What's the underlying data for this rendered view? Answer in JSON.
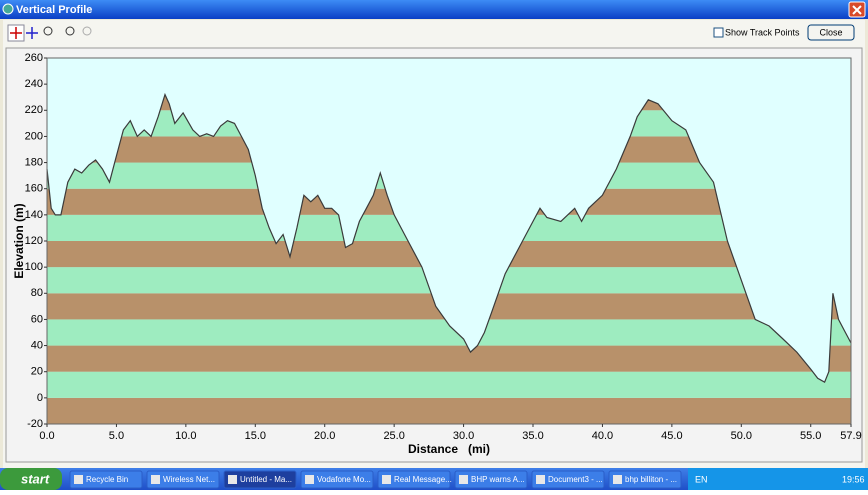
{
  "window": {
    "title": "Vertical Profile",
    "checkbox": "Show Track Points",
    "button": "Close"
  },
  "chart_data": {
    "type": "area",
    "xlabel": "Distance   (mi)",
    "ylabel": "Elevation (m)",
    "x": [
      0,
      0.3,
      0.6,
      1.0,
      1.5,
      2.0,
      2.5,
      3.0,
      3.5,
      4.0,
      4.5,
      5.0,
      5.5,
      6.0,
      6.5,
      7.0,
      7.5,
      8.0,
      8.5,
      8.8,
      9.2,
      9.8,
      10.5,
      11.0,
      11.5,
      12.0,
      12.5,
      13.0,
      13.5,
      14.0,
      14.5,
      15.0,
      15.5,
      16.0,
      16.5,
      17.0,
      17.5,
      18.0,
      18.5,
      19.0,
      19.5,
      20.0,
      20.5,
      21.0,
      21.5,
      22.0,
      22.5,
      23.0,
      23.5,
      24.0,
      24.5,
      25.0,
      26.0,
      27.0,
      28.0,
      29.0,
      30.0,
      30.5,
      31.0,
      31.5,
      32.0,
      32.5,
      33.0,
      34.0,
      35.0,
      35.5,
      36.0,
      37.0,
      38.0,
      38.5,
      39.0,
      40.0,
      41.0,
      42.0,
      42.5,
      43.3,
      44.0,
      45.0,
      46.0,
      47.0,
      48.0,
      49.0,
      50.0,
      51.0,
      52.0,
      53.0,
      54.0,
      55.0,
      55.5,
      56.0,
      56.3,
      56.6,
      57.0,
      57.5,
      57.9
    ],
    "values": [
      175,
      145,
      140,
      140,
      165,
      175,
      172,
      178,
      182,
      175,
      165,
      185,
      205,
      212,
      200,
      205,
      200,
      215,
      232,
      225,
      210,
      218,
      205,
      200,
      202,
      200,
      208,
      212,
      210,
      200,
      190,
      170,
      145,
      130,
      118,
      125,
      108,
      130,
      155,
      150,
      155,
      145,
      145,
      140,
      115,
      118,
      135,
      145,
      155,
      172,
      155,
      140,
      120,
      100,
      70,
      55,
      45,
      35,
      40,
      50,
      65,
      80,
      95,
      115,
      135,
      145,
      138,
      135,
      145,
      135,
      145,
      155,
      175,
      200,
      215,
      228,
      225,
      212,
      205,
      180,
      165,
      120,
      90,
      60,
      55,
      45,
      35,
      22,
      15,
      12,
      20,
      80,
      60,
      50,
      42
    ],
    "color": "#3a3a3a",
    "band_colors": [
      "#b8916a",
      "#9eecc0"
    ],
    "background": "#e0ffff",
    "xlim": [
      0,
      57.9
    ],
    "xticks": [
      {
        "value": 0,
        "label": "0.0"
      },
      {
        "value": 5,
        "label": "5.0"
      },
      {
        "value": 10,
        "label": "10.0"
      },
      {
        "value": 15,
        "label": "15.0"
      },
      {
        "value": 20,
        "label": "20.0"
      },
      {
        "value": 25,
        "label": "25.0"
      },
      {
        "value": 30,
        "label": "30.0"
      },
      {
        "value": 35,
        "label": "35.0"
      },
      {
        "value": 40,
        "label": "40.0"
      },
      {
        "value": 45,
        "label": "45.0"
      },
      {
        "value": 50,
        "label": "50.0"
      },
      {
        "value": 55,
        "label": "55.0"
      },
      57.9
    ],
    "ylim": [
      -20,
      260
    ],
    "yticks": [
      -20,
      0,
      20,
      40,
      60,
      80,
      100,
      120,
      140,
      160,
      180,
      200,
      220,
      240,
      260
    ]
  },
  "taskbar": {
    "start": "start",
    "items": [
      "Recycle Bin",
      "Wireless Net...",
      "Untitled - Ma...",
      "Vodafone Mo...",
      "Real Message...",
      "BHP warns A...",
      "Document3 - ...",
      "bhp billiton - ..."
    ],
    "lang": "EN",
    "clock": "19:56"
  }
}
